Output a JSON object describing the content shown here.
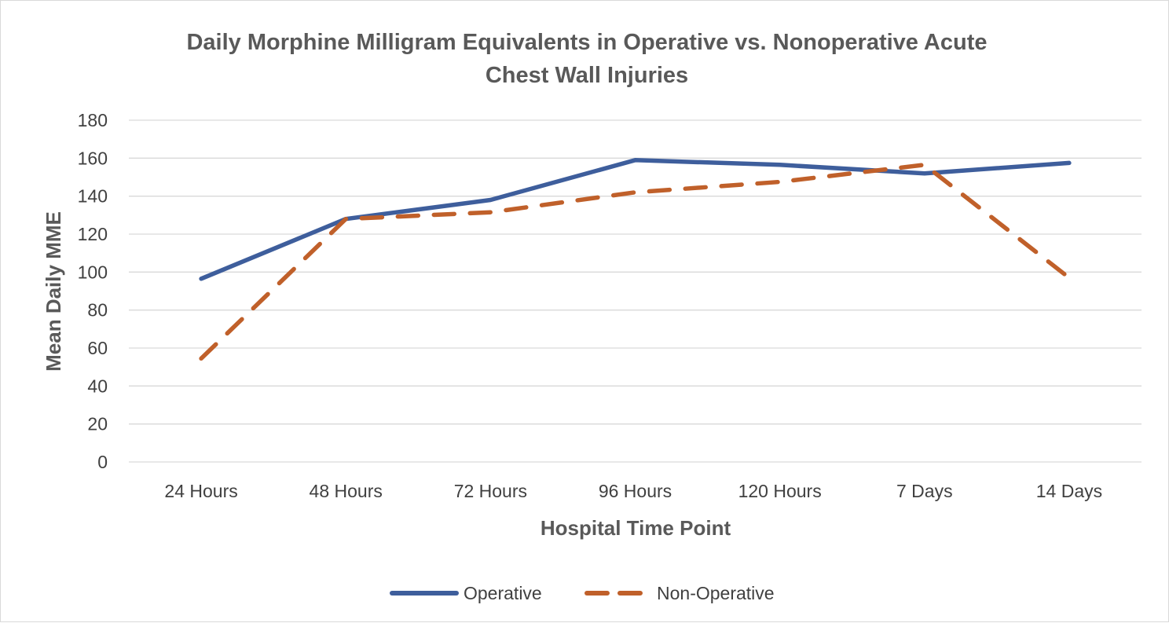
{
  "chart_data": {
    "type": "line",
    "title_lines": [
      "Daily Morphine Milligram Equivalents in Operative vs. Nonoperative Acute",
      "Chest Wall Injuries"
    ],
    "xlabel": "Hospital Time Point",
    "ylabel": "Mean Daily MME",
    "categories": [
      "24 Hours",
      "48 Hours",
      "72 Hours",
      "96 Hours",
      "120 Hours",
      "7 Days",
      "14 Days"
    ],
    "ylim": [
      0,
      180
    ],
    "yticks": [
      0,
      20,
      40,
      60,
      80,
      100,
      120,
      140,
      160,
      180
    ],
    "grid": "horizontal",
    "legend_position": "bottom",
    "series": [
      {
        "name": "Operative",
        "values": [
          96.5,
          128,
          138,
          159,
          156.5,
          152,
          157.5
        ],
        "color": "#3e5e9c",
        "style": "solid"
      },
      {
        "name": "Non-Operative",
        "values": [
          54.5,
          128,
          131.5,
          142,
          147.5,
          156.5,
          97
        ],
        "color": "#c0602a",
        "style": "dashed"
      }
    ]
  }
}
